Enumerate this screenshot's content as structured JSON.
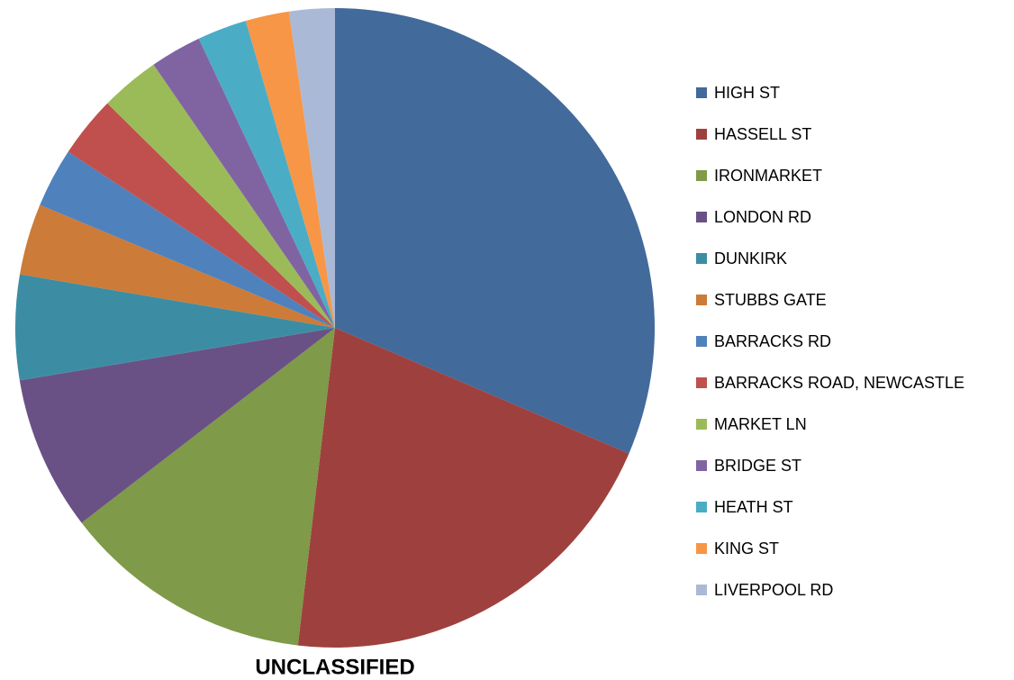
{
  "chart_data": {
    "type": "pie",
    "title": "UNCLASSIFIED",
    "categories": [
      "HIGH ST",
      "HASSELL ST",
      "IRONMARKET",
      "LONDON RD",
      "DUNKIRK",
      "STUBBS GATE",
      "BARRACKS RD",
      "BARRACKS ROAD, NEWCASTLE",
      "MARKET LN",
      "BRIDGE ST",
      "HEATH ST",
      "KING ST",
      "LIVERPOOL RD"
    ],
    "values": [
      31.4,
      20.4,
      12.7,
      7.8,
      5.3,
      3.6,
      3.0,
      3.1,
      3.0,
      2.6,
      2.5,
      2.2,
      2.3
    ],
    "colors": [
      "#426A9B",
      "#9E413E",
      "#7F9A48",
      "#695185",
      "#3C8DA3",
      "#CC7B38",
      "#4F81BD",
      "#C0504D",
      "#9BBB59",
      "#8064A2",
      "#4BACC6",
      "#F79646",
      "#AAB9D6"
    ],
    "legend": "right"
  }
}
